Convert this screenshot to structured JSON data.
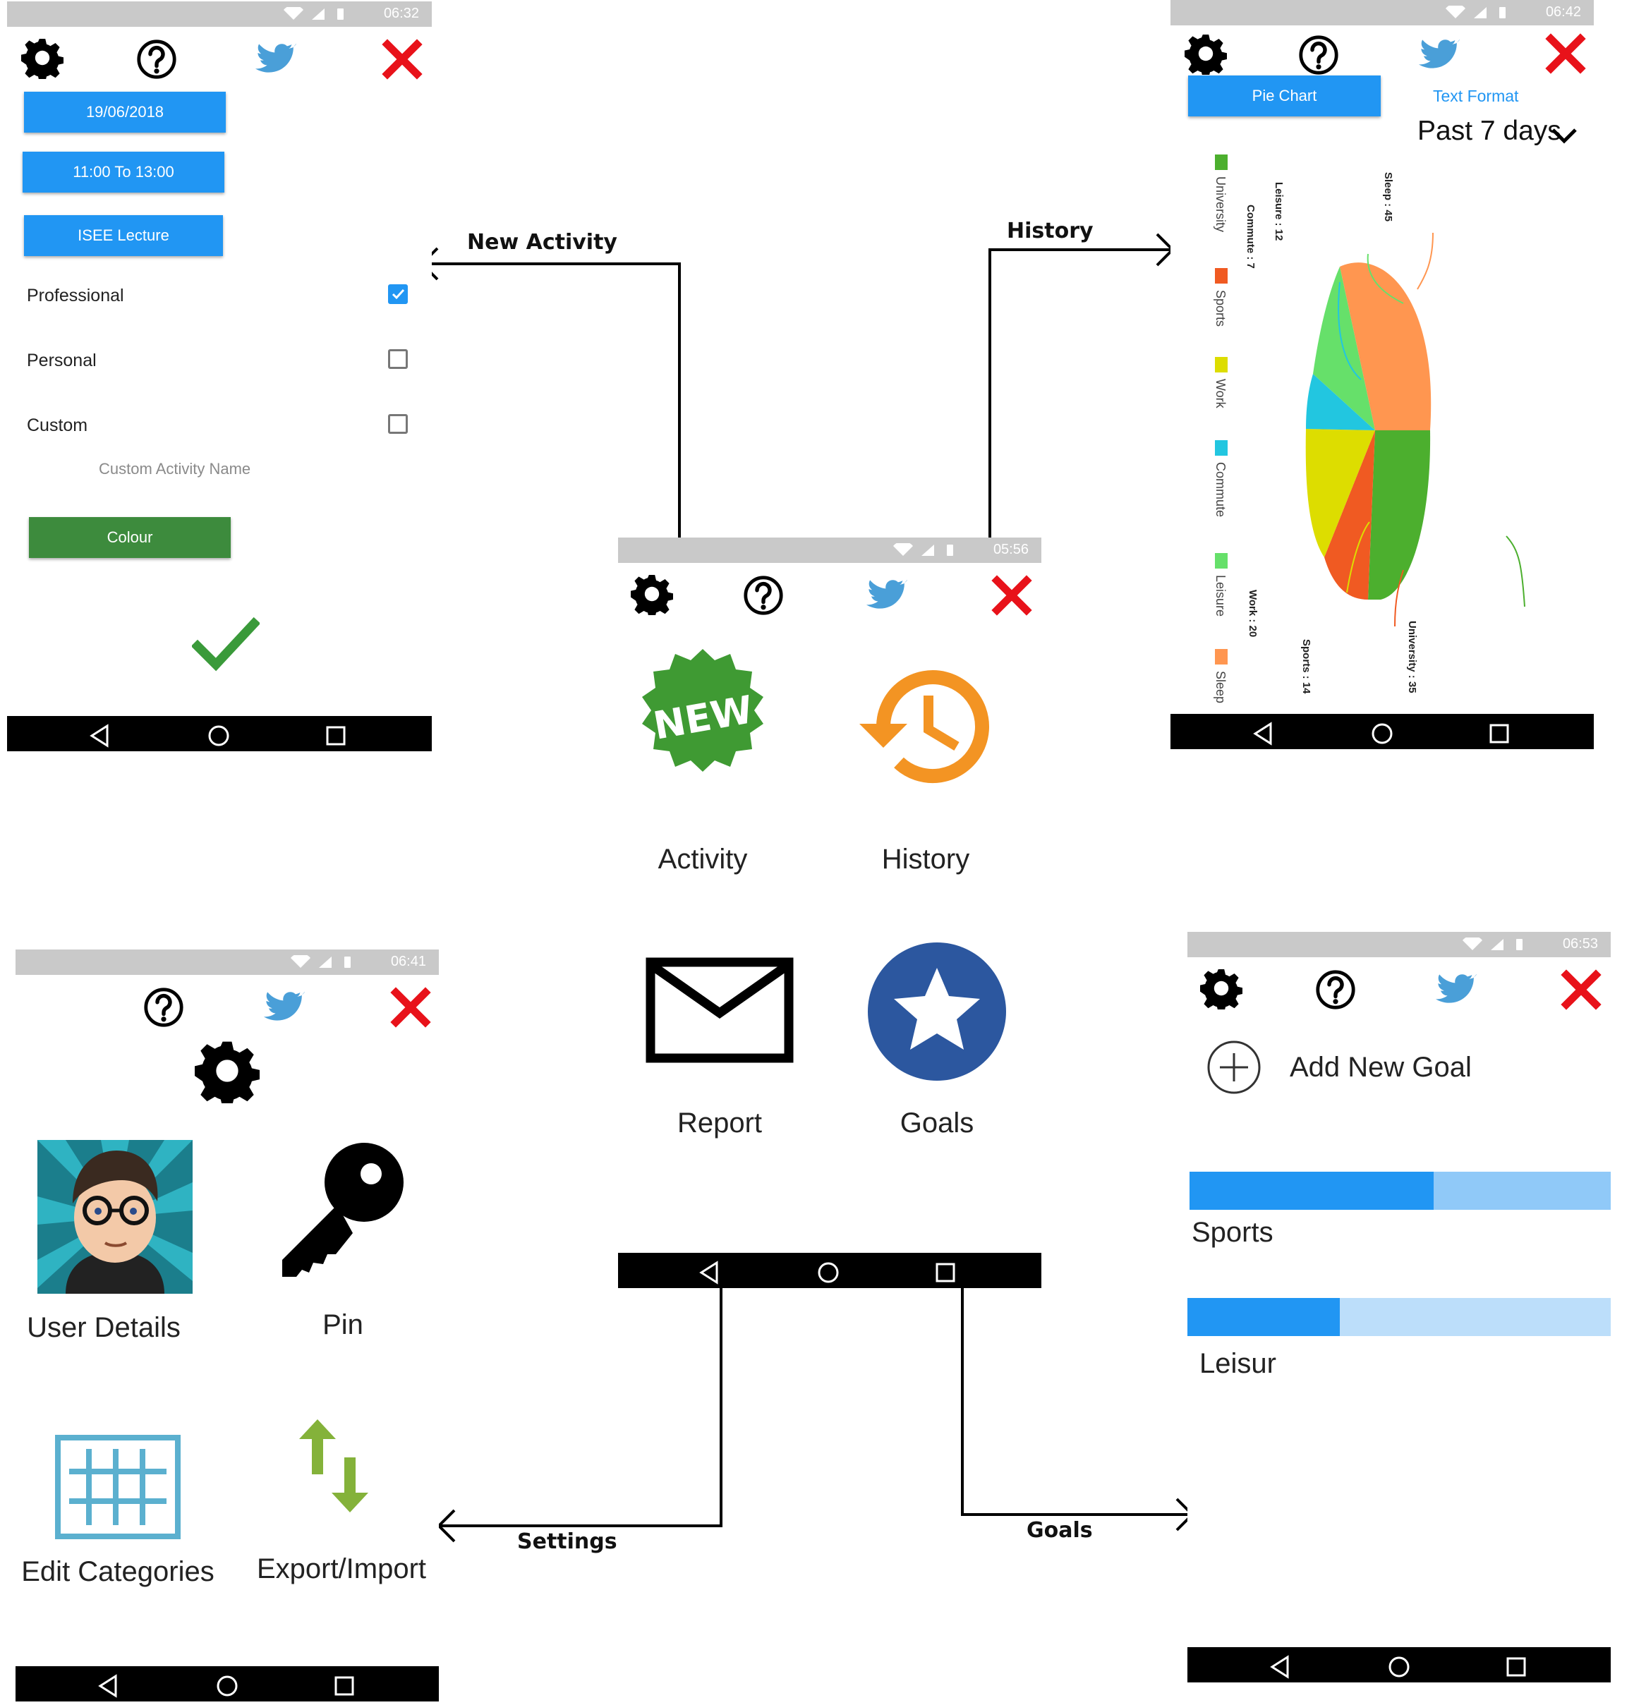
{
  "activity_screen": {
    "status_time": "06:32",
    "date_button": "19/06/2018",
    "time_button": "11:00  To 13:00",
    "title_button": "ISEE Lecture",
    "categories": [
      {
        "label": "Professional",
        "checked": true
      },
      {
        "label": "Personal",
        "checked": false
      },
      {
        "label": "Custom",
        "checked": false
      }
    ],
    "custom_name_placeholder": "Custom Activity Name",
    "colour_button": "Colour"
  },
  "home_screen": {
    "status_time": "05:56",
    "badge_text": "NEW",
    "items": [
      {
        "label": "Activity",
        "icon": "new-badge-icon"
      },
      {
        "label": "History",
        "icon": "history-clock-icon"
      },
      {
        "label": "Report",
        "icon": "envelope-icon"
      },
      {
        "label": "Goals",
        "icon": "star-icon"
      }
    ]
  },
  "history_screen": {
    "status_time": "06:42",
    "pie_chart_button": "Pie Chart",
    "text_format_link": "Text Format",
    "period": "Past 7 days",
    "legend": [
      {
        "label": "University",
        "color": "#4caf2e"
      },
      {
        "label": "Sports",
        "color": "#f05a22"
      },
      {
        "label": "Work",
        "color": "#dddd00"
      },
      {
        "label": "Commute",
        "color": "#22c6e0"
      },
      {
        "label": "Leisure",
        "color": "#66e06a"
      },
      {
        "label": "Sleep",
        "color": "#ff9650"
      }
    ],
    "slice_labels": {
      "sleep": "Sleep : 45",
      "leisure": "Leisure : 12",
      "commute": "Commute : 7",
      "work": "Work : 20",
      "sports": "Sports : 14",
      "university": "University : 35"
    }
  },
  "settings_screen": {
    "status_time": "06:41",
    "items": [
      {
        "label": "User Details",
        "icon": "avatar-icon"
      },
      {
        "label": "Pin",
        "icon": "key-icon"
      },
      {
        "label": "Edit Categories",
        "icon": "grid-icon"
      },
      {
        "label": "Export/Import",
        "icon": "arrows-icon"
      }
    ]
  },
  "goals_screen": {
    "status_time": "06:53",
    "add_goal": "Add New Goal",
    "goals": [
      {
        "label": "Sports",
        "progress": 0.58
      },
      {
        "label": "Leisur",
        "progress": 0.36
      }
    ]
  },
  "flow_labels": {
    "new_activity": "New Activity",
    "history": "History",
    "settings": "Settings",
    "goals": "Goals"
  },
  "colors": {
    "accent_blue": "#2196f3",
    "green": "#3d8b3d",
    "close_red": "#e8121a",
    "twitter_blue": "#4a9fd8"
  }
}
